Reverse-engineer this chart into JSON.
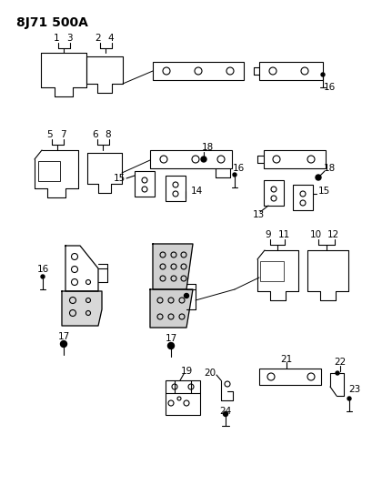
{
  "title": "8J71 500A",
  "bg_color": "#ffffff",
  "line_color": "#000000",
  "title_fontsize": 10,
  "label_fontsize": 7.5
}
